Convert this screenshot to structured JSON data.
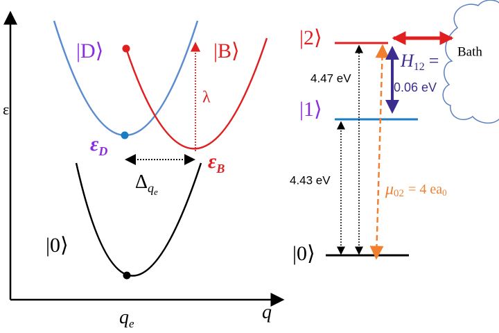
{
  "left_panel": {
    "axis_y_label": "ε",
    "axis_x_label": "q",
    "x_tick": {
      "symbol": "q",
      "sub": "e"
    },
    "state_d": "|D⟩",
    "state_b": "|B⟩",
    "state_0": "|0⟩",
    "lambda": "λ",
    "epsilon_d": {
      "symbol": "ε",
      "sub": "D"
    },
    "epsilon_b": {
      "symbol": "ε",
      "sub": "B"
    },
    "delta": {
      "symbol": "Δ",
      "sub": "q",
      "subsub": "e"
    }
  },
  "right_panel": {
    "level_2": "|2⟩",
    "level_1": "|1⟩",
    "level_0": "|0⟩",
    "energy_2": "4.47 eV",
    "energy_1": "4.43 eV",
    "coupling": {
      "symbol": "H",
      "sub": "12",
      "eq": "=",
      "value": "0.06 eV"
    },
    "bath": "Bath",
    "dipole": {
      "symbol": "μ",
      "sub": "02",
      "rest": "= 4 ea",
      "rest_sub": "0"
    }
  }
}
